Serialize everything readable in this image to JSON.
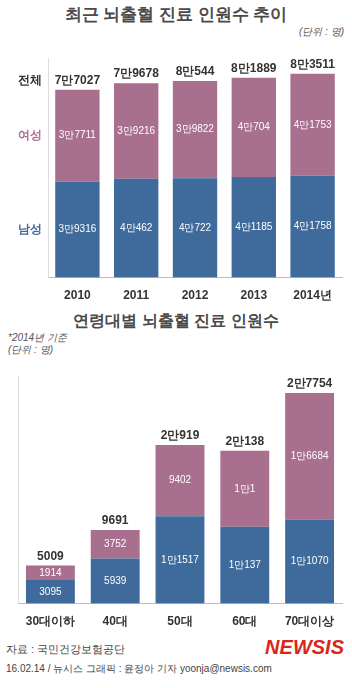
{
  "chart_data": [
    {
      "type": "bar",
      "title": "최근 뇌출혈 진료 인원수 추이",
      "annotations": [
        "(단위 : 명)"
      ],
      "categories": [
        "2010",
        "2011",
        "2012",
        "2013",
        "2014년"
      ],
      "stacked": true,
      "data_labels": true,
      "tick_labels": "x",
      "grid": false,
      "legend": "left",
      "ylim": [
        0,
        90000
      ],
      "series": [
        {
          "name": "남성",
          "color": "#3f6a9c",
          "values": [
            39316,
            40462,
            40722,
            41185,
            41758
          ],
          "value_labels": [
            "3만9316",
            "4만462",
            "4만722",
            "4만1185",
            "4만1758"
          ]
        },
        {
          "name": "여성",
          "color": "#a86f8e",
          "values": [
            37711,
            39216,
            39822,
            40704,
            41753
          ],
          "value_labels": [
            "3만7711",
            "3만9216",
            "3만9822",
            "4만704",
            "4만1753"
          ]
        }
      ],
      "totals": {
        "name": "전체",
        "values": [
          77027,
          79678,
          80544,
          81889,
          83511
        ],
        "value_labels": [
          "7만7027",
          "7만9678",
          "8만544",
          "8만1889",
          "8만3511"
        ]
      }
    },
    {
      "type": "bar",
      "title": "연령대별 뇌출혈 진료 인원수",
      "annotations": [
        "*2014년 기준",
        "(단위 : 명)"
      ],
      "categories": [
        "30대이하",
        "40대",
        "50대",
        "60대",
        "70대이상"
      ],
      "stacked": true,
      "data_labels": true,
      "tick_labels": "x",
      "grid": false,
      "ylim": [
        0,
        30000
      ],
      "series": [
        {
          "color": "#3f6a9c",
          "values": [
            3095,
            5939,
            11517,
            10137,
            11070
          ],
          "value_labels": [
            "3095",
            "5939",
            "1만1517",
            "1만137",
            "1만1070"
          ]
        },
        {
          "color": "#a86f8e",
          "values": [
            1914,
            3752,
            9402,
            10001,
            16684
          ],
          "value_labels": [
            "1914",
            "3752",
            "9402",
            "1만1",
            "1만6684"
          ]
        }
      ],
      "totals": {
        "values": [
          5009,
          9691,
          20919,
          20138,
          27754
        ],
        "value_labels": [
          "5009",
          "9691",
          "2만919",
          "2만138",
          "2만7754"
        ]
      }
    }
  ],
  "footer": {
    "source": "자료 : 국민건강보험공단",
    "credit": "16.02.14 / 뉴시스 그래픽 : 윤정아 기자 yoonja@newsis.com",
    "logo": "NEWSIS"
  }
}
